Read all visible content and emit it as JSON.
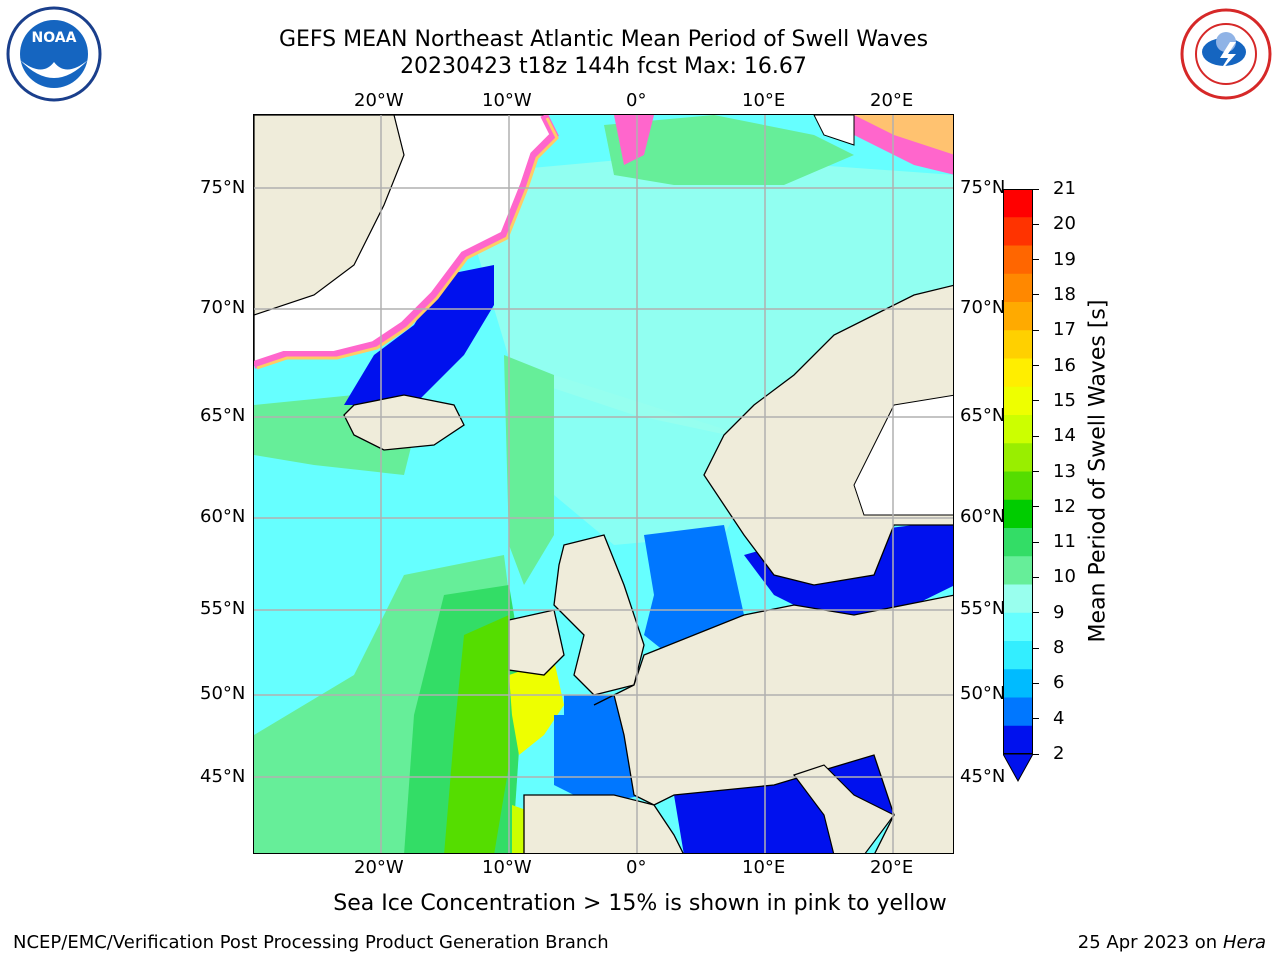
{
  "title": {
    "line1": "GEFS MEAN Northeast Atlantic Mean Period of Swell Waves",
    "line2": "20230423 t18z 144h fcst   Max: 16.67"
  },
  "logos": {
    "noaa_icon": "noaa-logo",
    "nws_icon": "national-weather-service-logo"
  },
  "map": {
    "lon_ticks": [
      "20°W",
      "10°W",
      "0°",
      "10°E",
      "20°E"
    ],
    "lat_ticks": [
      "75°N",
      "70°N",
      "65°N",
      "60°N",
      "55°N",
      "50°N",
      "45°N"
    ],
    "colors": {
      "land": "#efecda",
      "ice_mask": "#ffffff",
      "grid": "#b0b0b0",
      "sea_ice_edge": [
        "#ff66cc",
        "#ffcc66"
      ]
    }
  },
  "colorbar": {
    "label": "Mean Period of Swell Waves [s]",
    "ticks": [
      "21",
      "20",
      "19",
      "18",
      "17",
      "16",
      "15",
      "14",
      "13",
      "12",
      "11",
      "10",
      "9",
      "8",
      "6",
      "4",
      "2"
    ],
    "colors": [
      "#ff0000",
      "#ff3300",
      "#ff6600",
      "#ff8800",
      "#ffaa00",
      "#ffd000",
      "#ffee00",
      "#eeff00",
      "#ccff00",
      "#99ee00",
      "#55dd00",
      "#00cc00",
      "#33dd66",
      "#66ee99",
      "#99ffee",
      "#66ffff",
      "#33eeff",
      "#00bbff",
      "#0077ff",
      "#0011ee"
    ]
  },
  "note": "Sea Ice Concentration > 15% is shown in pink to yellow",
  "footer": {
    "left": "NCEP/EMC/Verification Post Processing Product Generation Branch",
    "date": "25 Apr 2023 on ",
    "machine": "Hera"
  }
}
